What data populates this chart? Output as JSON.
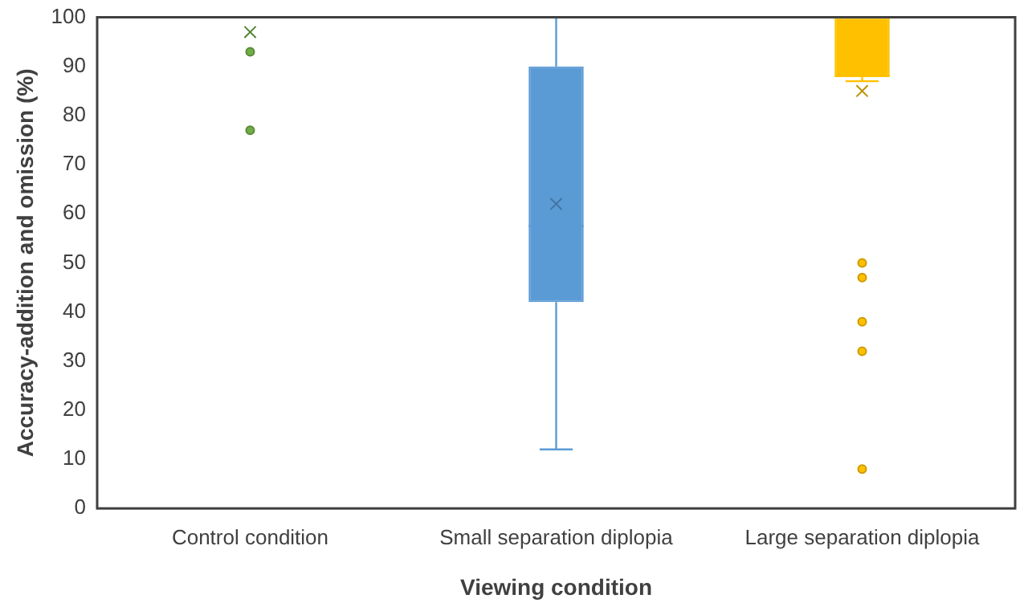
{
  "chart_data": {
    "type": "box",
    "xlabel": "Viewing condition",
    "ylabel": "Accuracy-addition and omission (%)",
    "categories": [
      "Control condition",
      "Small separation diplopia",
      "Large separation diplopia"
    ],
    "colors": [
      "#70ad47",
      "#5b9bd5",
      "#ffc000"
    ],
    "boxes": [
      {
        "low": 100,
        "q1": 100,
        "median": 100,
        "q3": 100,
        "high": 100,
        "mean": 97,
        "outliers": [
          93,
          77
        ]
      },
      {
        "low": 12,
        "q1": 42,
        "median": 57.5,
        "q3": 90,
        "high": 100,
        "mean": 62
      },
      {
        "low": 87,
        "q1": 88,
        "median": 88,
        "q3": 100,
        "high": 100,
        "mean": 85,
        "outliers": [
          50,
          47,
          38,
          32,
          8
        ]
      }
    ],
    "ylim": [
      0,
      100
    ],
    "yticks": [
      0,
      10,
      20,
      30,
      40,
      50,
      60,
      70,
      80,
      90,
      100
    ],
    "grid": false,
    "legend": false
  }
}
